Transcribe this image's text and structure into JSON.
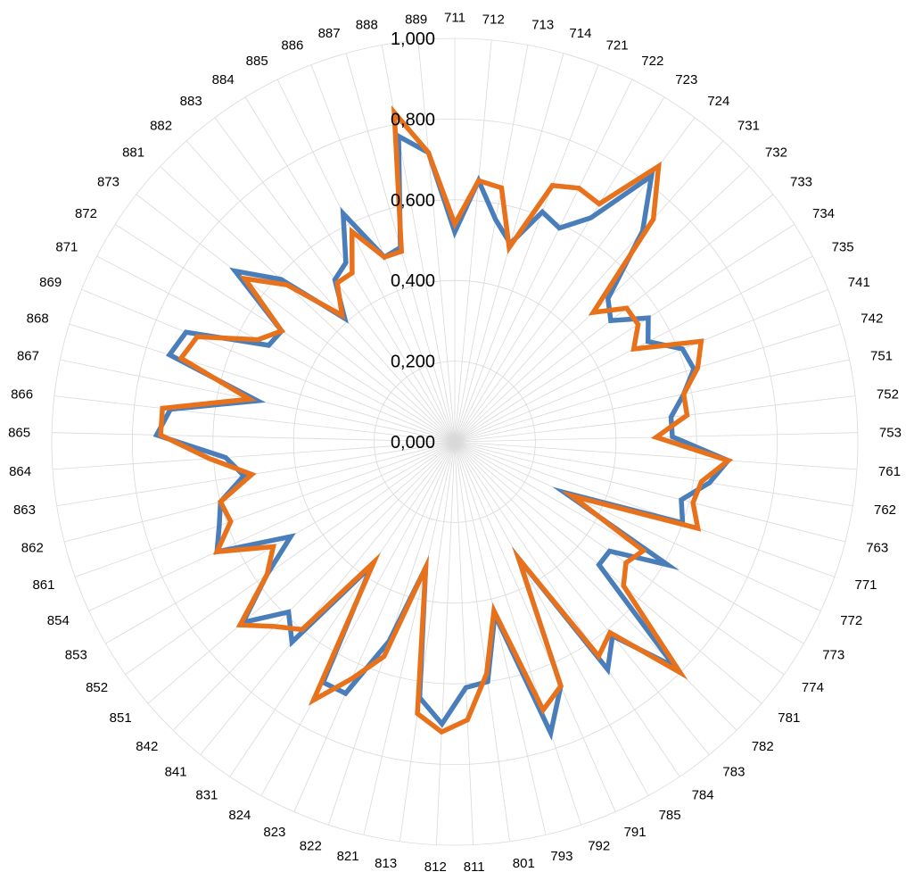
{
  "chart_data": {
    "type": "radar",
    "title": "",
    "grid": true,
    "legend": "none",
    "rlim": [
      0,
      1.0
    ],
    "ticks": [
      0,
      0.2,
      0.4,
      0.6,
      0.8,
      1.0
    ],
    "tick_labels": [
      "0,000",
      "0,200",
      "0,400",
      "0,600",
      "0,800",
      "1,000"
    ],
    "categories": [
      "711",
      "712",
      "713",
      "714",
      "721",
      "722",
      "723",
      "724",
      "731",
      "732",
      "733",
      "734",
      "735",
      "741",
      "742",
      "751",
      "752",
      "753",
      "761",
      "762",
      "763",
      "771",
      "772",
      "773",
      "774",
      "781",
      "782",
      "783",
      "784",
      "785",
      "791",
      "792",
      "793",
      "801",
      "811",
      "812",
      "813",
      "821",
      "822",
      "823",
      "824",
      "831",
      "841",
      "842",
      "851",
      "852",
      "853",
      "854",
      "861",
      "862",
      "863",
      "864",
      "865",
      "866",
      "867",
      "868",
      "869",
      "871",
      "872",
      "873",
      "881",
      "882",
      "883",
      "884",
      "885",
      "886",
      "887",
      "888",
      "889"
    ],
    "series": [
      {
        "color": "#4a7ebb",
        "values": [
          0.52,
          0.65,
          0.56,
          0.51,
          0.61,
          0.59,
          0.65,
          0.82,
          0.7,
          0.52,
          0.49,
          0.57,
          0.54,
          0.61,
          0.62,
          0.58,
          0.54,
          0.54,
          0.68,
          0.64,
          0.58,
          0.6,
          0.3,
          0.61,
          0.47,
          0.47,
          0.78,
          0.62,
          0.68,
          0.33,
          0.66,
          0.76,
          0.44,
          0.6,
          0.61,
          0.7,
          0.64,
          0.32,
          0.52,
          0.68,
          0.68,
          0.37,
          0.64,
          0.59,
          0.69,
          0.57,
          0.47,
          0.65,
          0.62,
          0.6,
          0.53,
          0.57,
          0.74,
          0.71,
          0.5,
          0.74,
          0.72,
          0.52,
          0.51,
          0.69,
          0.59,
          0.41,
          0.5,
          0.52,
          0.63,
          0.49,
          0.5,
          0.77,
          0.72
        ]
      },
      {
        "color": "#e8721c",
        "values": [
          0.54,
          0.65,
          0.64,
          0.5,
          0.68,
          0.7,
          0.69,
          0.85,
          0.74,
          0.47,
          0.54,
          0.54,
          0.5,
          0.66,
          0.63,
          0.58,
          0.58,
          0.5,
          0.68,
          0.62,
          0.61,
          0.64,
          0.32,
          0.54,
          0.52,
          0.55,
          0.8,
          0.61,
          0.64,
          0.33,
          0.66,
          0.7,
          0.43,
          0.58,
          0.69,
          0.72,
          0.68,
          0.32,
          0.56,
          0.64,
          0.73,
          0.36,
          0.6,
          0.64,
          0.7,
          0.57,
          0.52,
          0.65,
          0.59,
          0.6,
          0.51,
          0.61,
          0.73,
          0.73,
          0.52,
          0.71,
          0.69,
          0.55,
          0.51,
          0.66,
          0.57,
          0.42,
          0.49,
          0.49,
          0.58,
          0.49,
          0.49,
          0.83,
          0.72
        ]
      }
    ]
  }
}
